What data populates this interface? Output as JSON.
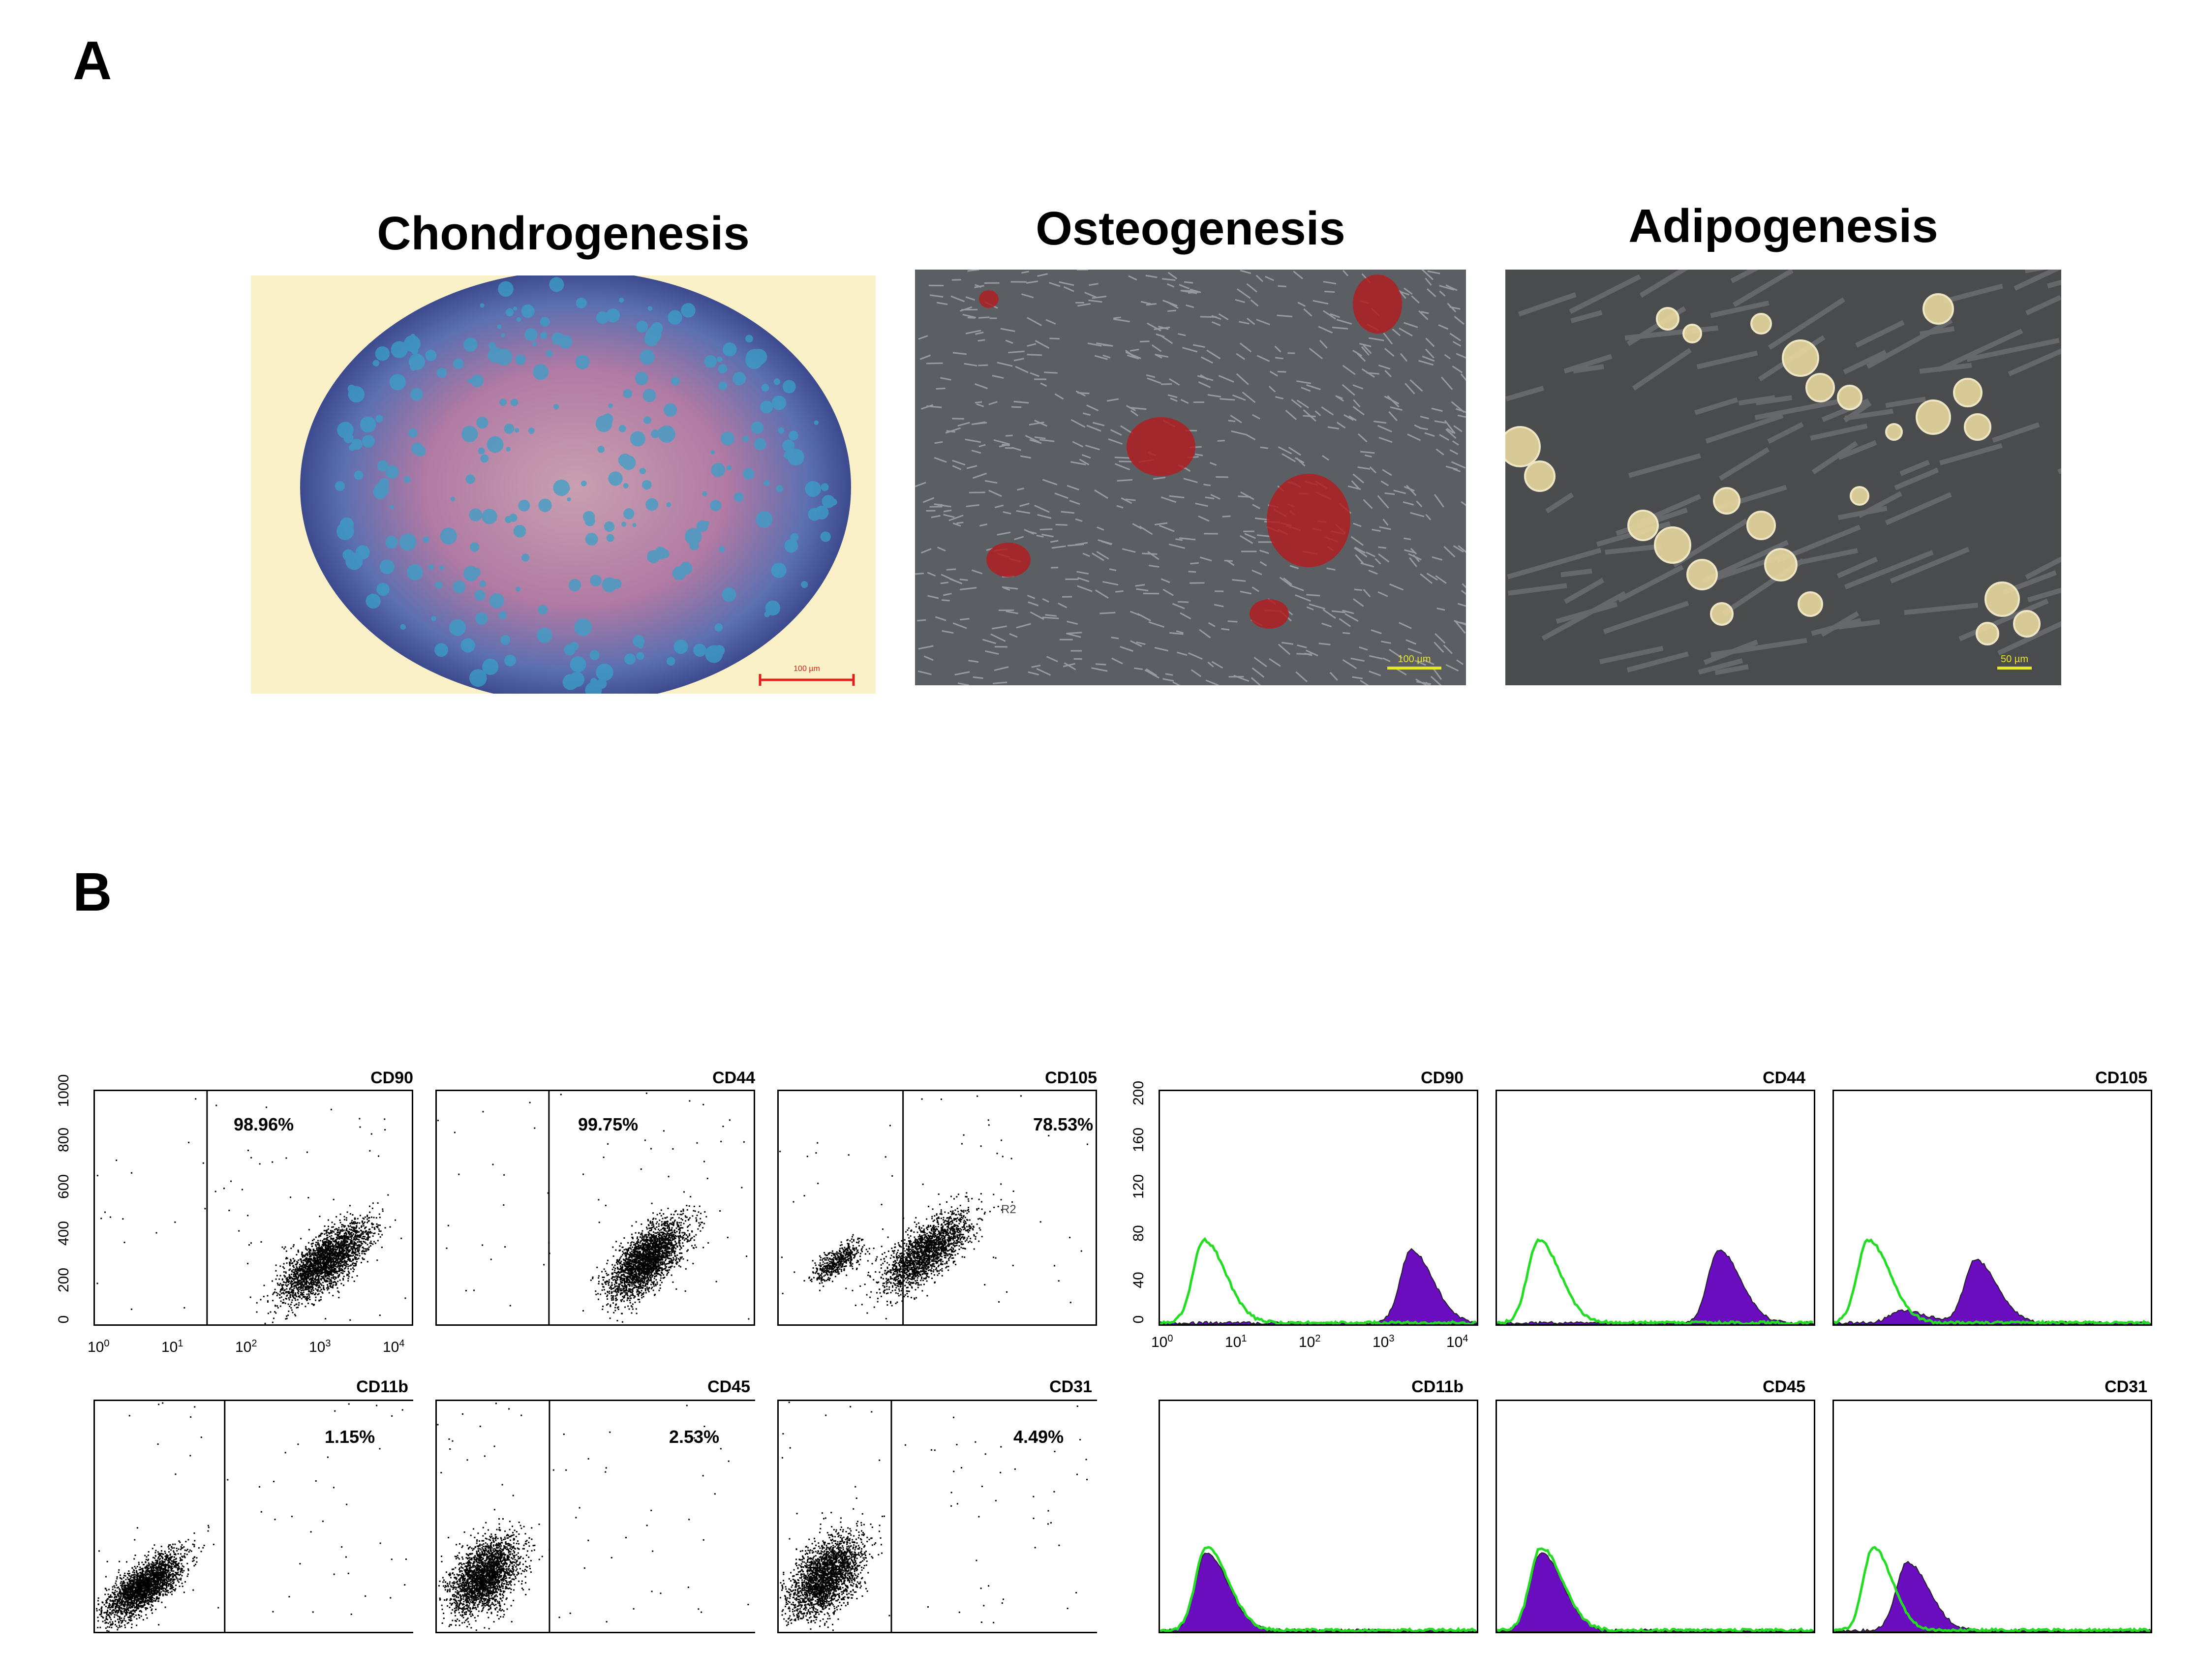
{
  "panels": {
    "a": "A",
    "b": "B"
  },
  "micrographs": [
    {
      "title": "Chondrogenesis",
      "scale_bar": "100 µm",
      "scale_color": "#e0211b"
    },
    {
      "title": "Osteogenesis",
      "scale_bar": "100 µm",
      "scale_color": "#e6e62a"
    },
    {
      "title": "Adipogenesis",
      "scale_bar": "50 µm",
      "scale_color": "#e6e62a"
    }
  ],
  "dot_plots": [
    {
      "marker": "CD90",
      "percent": "98.96%",
      "gate_label": ""
    },
    {
      "marker": "CD44",
      "percent": "99.75%",
      "gate_label": ""
    },
    {
      "marker": "CD105",
      "percent": "78.53%",
      "gate_label": "R2"
    },
    {
      "marker": "CD11b",
      "percent": "1.15%",
      "gate_label": ""
    },
    {
      "marker": "CD45",
      "percent": "2.53%",
      "gate_label": ""
    },
    {
      "marker": "CD31",
      "percent": "4.49%",
      "gate_label": ""
    }
  ],
  "histograms": [
    {
      "marker": "CD90"
    },
    {
      "marker": "CD44"
    },
    {
      "marker": "CD105"
    },
    {
      "marker": "CD11b"
    },
    {
      "marker": "CD45"
    },
    {
      "marker": "CD31"
    }
  ],
  "axes": {
    "dot_y_ticks": [
      "0",
      "200",
      "400",
      "600",
      "800",
      "1000"
    ],
    "hist_y_ticks": [
      "0",
      "40",
      "80",
      "120",
      "160",
      "200"
    ],
    "log_x_ticks": [
      {
        "base": "10",
        "exp": "0"
      },
      {
        "base": "10",
        "exp": "1"
      },
      {
        "base": "10",
        "exp": "2"
      },
      {
        "base": "10",
        "exp": "3"
      },
      {
        "base": "10",
        "exp": "4"
      }
    ]
  },
  "colors": {
    "isotype_line": "#22dd22",
    "positive_fill": "#6a0dbf",
    "dots": "#000000"
  }
}
